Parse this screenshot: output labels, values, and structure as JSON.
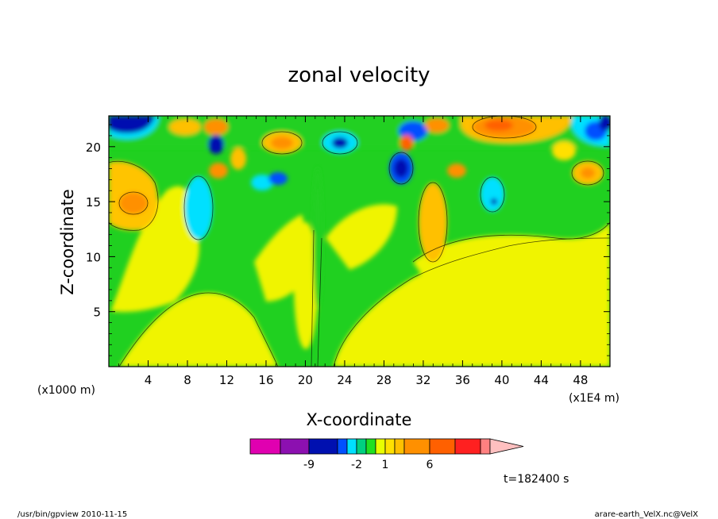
{
  "chart_data": {
    "type": "heatmap",
    "title": "zonal velocity",
    "xlabel": "X-coordinate",
    "ylabel": "Z-coordinate",
    "x_unit_left": "(x1000 m)",
    "x_unit_right": "(x1E4 m)",
    "xlim": [
      0,
      51
    ],
    "ylim": [
      0,
      22.8
    ],
    "x_ticks": [
      "4",
      "8",
      "12",
      "16",
      "20",
      "24",
      "28",
      "32",
      "36",
      "40",
      "44",
      "48"
    ],
    "y_ticks": [
      "5",
      "10",
      "15",
      "20"
    ],
    "colorbar": {
      "colors": [
        "#e000b0",
        "#8c10b0",
        "#0010b0",
        "#0050ff",
        "#00e0ff",
        "#00d080",
        "#20e020",
        "#e8ff00",
        "#ffe000",
        "#ffc000",
        "#ff9000",
        "#ff6000",
        "#ff2020",
        "#ff8080",
        "#ffc0c0"
      ],
      "labels": [
        {
          "text": "-9",
          "index": 1
        },
        {
          "text": "-2",
          "index": 4
        },
        {
          "text": "1",
          "index": 7
        },
        {
          "text": "6",
          "index": 10
        }
      ]
    },
    "grid": false,
    "time_label": "t=182400 s"
  },
  "footer": {
    "left": "/usr/bin/gpview   2010-11-15",
    "right": "arare-earth_VelX.nc@VelX"
  }
}
